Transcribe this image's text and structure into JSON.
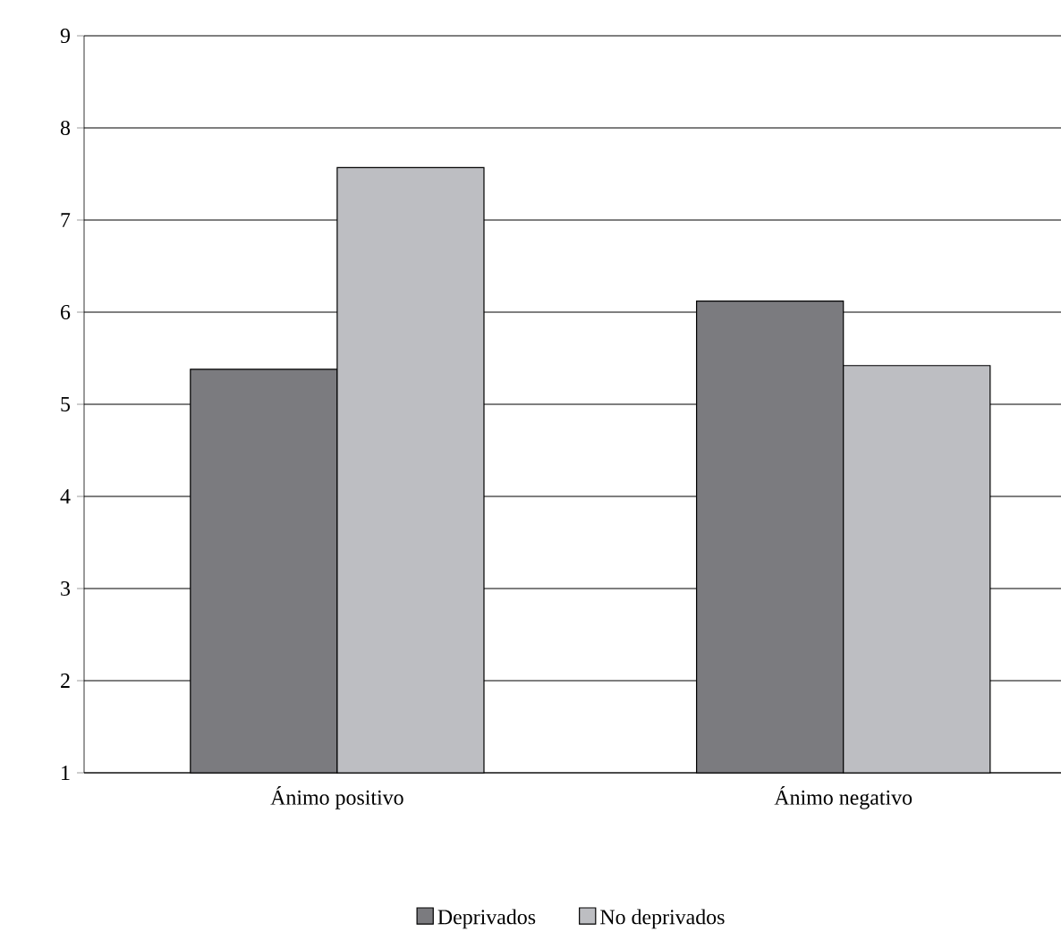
{
  "chart_data": {
    "type": "bar",
    "categories": [
      "Ánimo positivo",
      "Ánimo negativo"
    ],
    "series": [
      {
        "name": "Deprivados",
        "color": "#7b7b7f",
        "values": [
          5.38,
          6.12
        ]
      },
      {
        "name": "No deprivados",
        "color": "#bdbec2",
        "values": [
          7.57,
          5.42
        ]
      }
    ],
    "ylim": [
      1,
      9
    ],
    "yticks": [
      1,
      2,
      3,
      4,
      5,
      6,
      7,
      8,
      9
    ],
    "grid": "y",
    "legend": "bottom"
  }
}
